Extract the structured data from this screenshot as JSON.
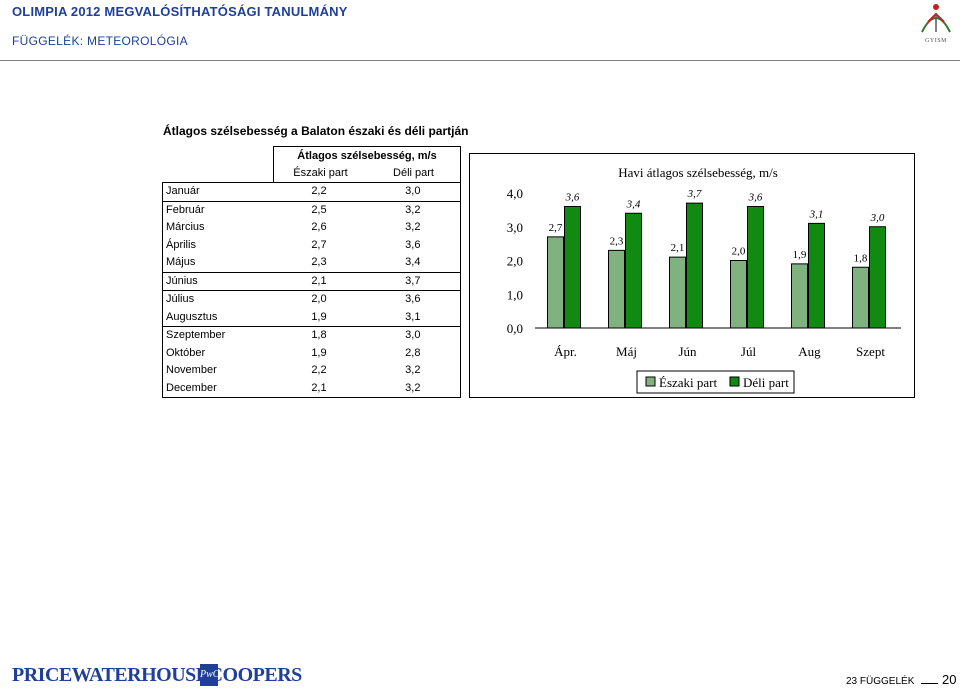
{
  "header": {
    "title": "OLIMPIA 2012 MEGVALÓSÍTHATÓSÁGI TANULMÁNY",
    "subtitle": "FÜGGELÉK: METEOROLÓGIA",
    "logo_text": "GYISM"
  },
  "section_title": "Átlagos szélsebesség a Balaton északi és déli partján",
  "table": {
    "header_top": "Átlagos szélsebesség, m/s",
    "col_north": "Északi part",
    "col_south": "Déli part",
    "rows": [
      {
        "month": "Január",
        "north": "2,2",
        "south": "3,0"
      },
      {
        "month": "Február",
        "north": "2,5",
        "south": "3,2"
      },
      {
        "month": "Március",
        "north": "2,6",
        "south": "3,2"
      },
      {
        "month": "Április",
        "north": "2,7",
        "south": "3,6"
      },
      {
        "month": "Május",
        "north": "2,3",
        "south": "3,4"
      },
      {
        "month": "Június",
        "north": "2,1",
        "south": "3,7"
      },
      {
        "month": "Július",
        "north": "2,0",
        "south": "3,6"
      },
      {
        "month": "Augusztus",
        "north": "1,9",
        "south": "3,1"
      },
      {
        "month": "Szeptember",
        "north": "1,8",
        "south": "3,0"
      },
      {
        "month": "Október",
        "north": "1,9",
        "south": "2,8"
      },
      {
        "month": "November",
        "north": "2,2",
        "south": "3,2"
      },
      {
        "month": "December",
        "north": "2,1",
        "south": "3,2"
      }
    ]
  },
  "chart_data": {
    "type": "bar",
    "title": "Havi átlagos  szélsebesség, m/s",
    "categories": [
      "Ápr.",
      "Máj",
      "Jún",
      "Júl",
      "Aug",
      "Szept"
    ],
    "series": [
      {
        "name": "Északi part",
        "values": [
          2.7,
          2.3,
          2.1,
          2.0,
          1.9,
          1.8
        ],
        "labels": [
          "2,7",
          "2,3",
          "2,1",
          "2,0",
          "1,9",
          "1,8"
        ],
        "color": "#7fb27f"
      },
      {
        "name": "Déli part",
        "values": [
          3.6,
          3.4,
          3.7,
          3.6,
          3.1,
          3.0
        ],
        "labels": [
          "3,6",
          "3,4",
          "3,7",
          "3,6",
          "3,1",
          "3,0"
        ],
        "color": "#108a10"
      }
    ],
    "yticks": [
      "0,0",
      "1,0",
      "2,0",
      "3,0",
      "4,0"
    ],
    "ylim": [
      0,
      4
    ],
    "legend": "bottom",
    "grid": false
  },
  "footer": {
    "company": "PRICEWATERHOUSECOOPERS",
    "company_mark": "PwC",
    "section_label": "23 FÜGGELÉK",
    "page_number": "20"
  },
  "colors": {
    "header_blue": "#1f3f99",
    "north_bar": "#7fb27f",
    "south_bar": "#108a10"
  }
}
